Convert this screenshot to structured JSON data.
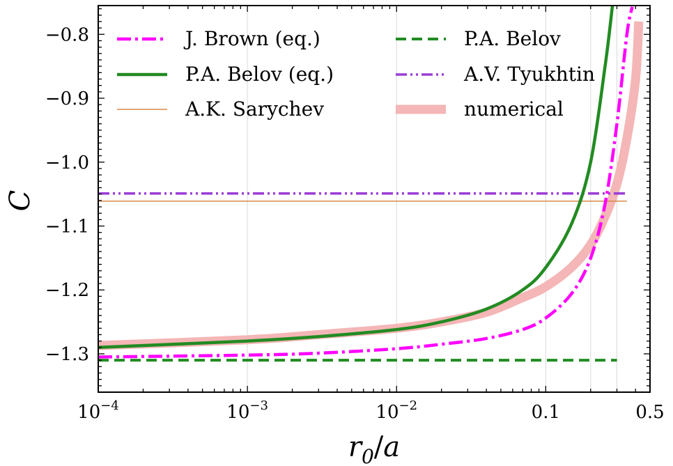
{
  "chart_data": {
    "type": "line",
    "xscale": "log",
    "xlabel": "r0/a",
    "ylabel": "C",
    "xlim": [
      0.0001,
      0.5
    ],
    "ylim": [
      -1.36,
      -0.755
    ],
    "x_ticks": [
      {
        "value": 0.0001,
        "base": "10",
        "exp": "−4",
        "label": ""
      },
      {
        "value": 0.001,
        "base": "10",
        "exp": "−3",
        "label": ""
      },
      {
        "value": 0.01,
        "base": "10",
        "exp": "−2",
        "label": ""
      },
      {
        "value": 0.1,
        "base": "",
        "exp": "",
        "label": "0.1"
      },
      {
        "value": 0.5,
        "base": "",
        "exp": "",
        "label": "0.5"
      }
    ],
    "y_ticks": [
      {
        "value": -0.8,
        "label": "−0.8"
      },
      {
        "value": -0.9,
        "label": "−0.9"
      },
      {
        "value": -1.0,
        "label": "−1.0"
      },
      {
        "value": -1.1,
        "label": "−1.1"
      },
      {
        "value": -1.2,
        "label": "−1.2"
      },
      {
        "value": -1.3,
        "label": "−1.3"
      }
    ],
    "gridlines_x": [
      0.0001,
      0.001,
      0.01,
      0.1,
      0.2,
      0.3
    ],
    "legend": {
      "placement": "top",
      "columns": 2,
      "entries": [
        "J. Brown (eq.)",
        "P.A. Belov",
        "P.A. Belov (eq.)",
        "A.V. Tyukhtin",
        "A.K. Sarychev",
        "numerical"
      ]
    },
    "series": [
      {
        "name": "numerical",
        "color": "#f4b6b6",
        "style": "solid-thick",
        "x": [
          0.0001,
          0.001,
          0.003,
          0.01,
          0.02,
          0.04,
          0.07,
          0.1,
          0.15,
          0.2,
          0.25,
          0.3,
          0.35,
          0.4,
          0.42
        ],
        "y": [
          -1.287,
          -1.278,
          -1.27,
          -1.26,
          -1.25,
          -1.235,
          -1.212,
          -1.195,
          -1.164,
          -1.129,
          -1.085,
          -1.034,
          -0.963,
          -0.87,
          -0.78
        ]
      },
      {
        "name": "A.K. Sarychev",
        "color": "#d9894a",
        "style": "solid-thin",
        "x": [
          0.0001,
          0.35
        ],
        "y": [
          -1.061,
          -1.061
        ]
      },
      {
        "name": "A.V. Tyukhtin",
        "color": "#9b3dd6",
        "style": "dashdotdot",
        "x": [
          0.0001,
          0.35
        ],
        "y": [
          -1.049,
          -1.049
        ]
      },
      {
        "name": "P.A. Belov",
        "color": "#228b22",
        "style": "dashed",
        "x": [
          0.0001,
          0.3
        ],
        "y": [
          -1.31,
          -1.31
        ]
      },
      {
        "name": "J. Brown (eq.)",
        "color": "#ff00ff",
        "style": "dashdot",
        "x": [
          0.0001,
          0.001,
          0.003,
          0.01,
          0.02,
          0.04,
          0.07,
          0.1,
          0.15,
          0.2,
          0.25,
          0.3,
          0.35,
          0.38
        ],
        "y": [
          -1.305,
          -1.302,
          -1.299,
          -1.292,
          -1.285,
          -1.276,
          -1.262,
          -1.244,
          -1.205,
          -1.15,
          -1.065,
          -0.94,
          -0.8,
          -0.757
        ]
      },
      {
        "name": "P.A. Belov (eq.)",
        "color": "#228b22",
        "style": "solid",
        "x": [
          0.0001,
          0.001,
          0.003,
          0.01,
          0.02,
          0.04,
          0.07,
          0.1,
          0.15,
          0.2,
          0.25,
          0.28
        ],
        "y": [
          -1.29,
          -1.28,
          -1.273,
          -1.262,
          -1.25,
          -1.23,
          -1.2,
          -1.165,
          -1.095,
          -1.0,
          -0.85,
          -0.755
        ]
      }
    ]
  }
}
